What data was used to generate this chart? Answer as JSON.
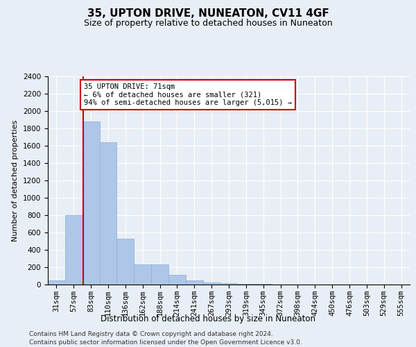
{
  "title": "35, UPTON DRIVE, NUNEATON, CV11 4GF",
  "subtitle": "Size of property relative to detached houses in Nuneaton",
  "xlabel": "Distribution of detached houses by size in Nuneaton",
  "ylabel": "Number of detached properties",
  "bar_color": "#aec6e8",
  "bar_edge_color": "#8ab0d0",
  "categories": [
    "31sqm",
    "57sqm",
    "83sqm",
    "110sqm",
    "136sqm",
    "162sqm",
    "188sqm",
    "214sqm",
    "241sqm",
    "267sqm",
    "293sqm",
    "319sqm",
    "345sqm",
    "372sqm",
    "398sqm",
    "424sqm",
    "450sqm",
    "476sqm",
    "503sqm",
    "529sqm",
    "555sqm"
  ],
  "values": [
    50,
    800,
    1880,
    1640,
    530,
    230,
    230,
    110,
    50,
    25,
    15,
    10,
    5,
    3,
    2,
    2,
    1,
    1,
    1,
    1,
    1
  ],
  "ylim": [
    0,
    2400
  ],
  "yticks": [
    0,
    200,
    400,
    600,
    800,
    1000,
    1200,
    1400,
    1600,
    1800,
    2000,
    2200,
    2400
  ],
  "property_line_x": 1.54,
  "property_line_color": "#cc0000",
  "annotation_box_text": "35 UPTON DRIVE: 71sqm\n← 6% of detached houses are smaller (321)\n94% of semi-detached houses are larger (5,015) →",
  "annotation_box_color": "#cc0000",
  "background_color": "#e8eef5",
  "plot_bg_color": "#e8eef5",
  "footer_line1": "Contains HM Land Registry data © Crown copyright and database right 2024.",
  "footer_line2": "Contains public sector information licensed under the Open Government Licence v3.0.",
  "title_fontsize": 11,
  "subtitle_fontsize": 9,
  "xlabel_fontsize": 8.5,
  "ylabel_fontsize": 8,
  "tick_fontsize": 7.5,
  "footer_fontsize": 6.5
}
